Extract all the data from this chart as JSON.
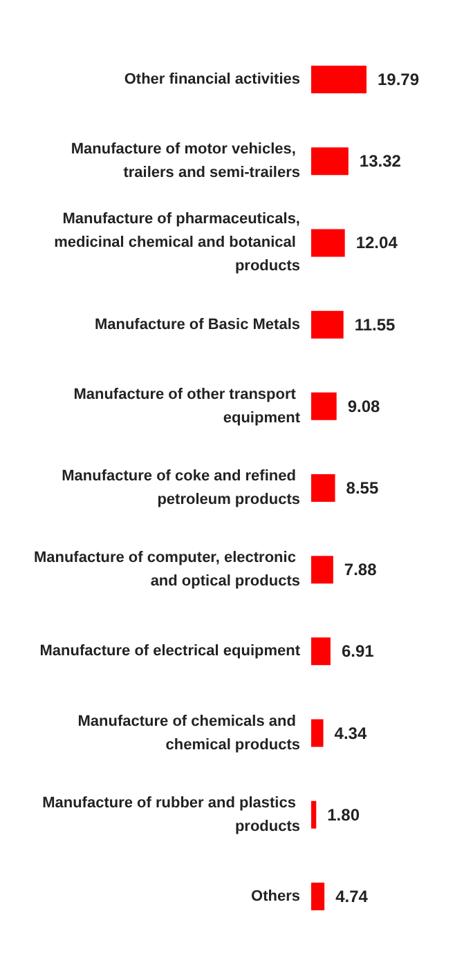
{
  "chart_data": {
    "type": "bar",
    "orientation": "horizontal",
    "categories": [
      "Other financial activities",
      "Manufacture of motor vehicles, trailers and semi-trailers",
      "Manufacture of pharmaceuticals,medicinal chemical and botanical products",
      "Manufacture of Basic Metals",
      "Manufacture of other transport equipment",
      "Manufacture of coke and refined petroleum products",
      "Manufacture of computer, electronic and optical products",
      "Manufacture of electrical equipment",
      "Manufacture of chemicals and chemical products",
      "Manufacture of rubber and plastics products",
      "Others"
    ],
    "values": [
      19.79,
      13.32,
      12.04,
      11.55,
      9.08,
      8.55,
      7.88,
      6.91,
      4.34,
      1.8,
      4.74
    ],
    "value_labels": [
      "19.79",
      "13.32",
      "12.04",
      "11.55",
      "9.08",
      "8.55",
      "7.88",
      "6.91",
      "4.34",
      "1.80",
      "4.74"
    ],
    "color": "#ff0000"
  }
}
